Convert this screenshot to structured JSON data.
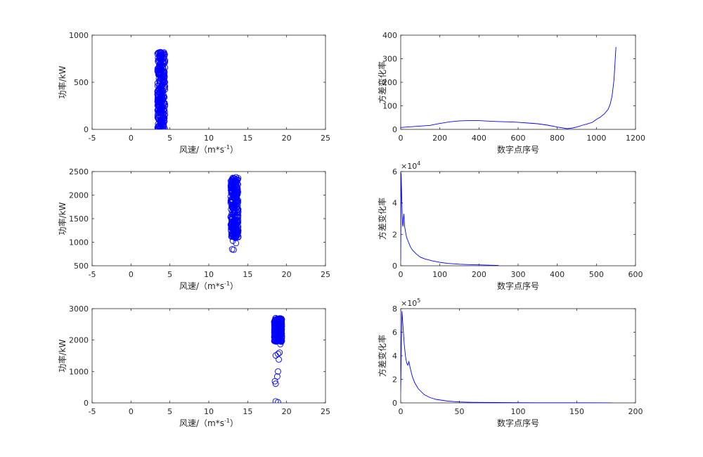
{
  "chart_data": [
    {
      "type": "scatter",
      "xlabel_main": "风速/（m*s",
      "xlabel_sup": "-1",
      "xlabel_close": "）",
      "ylabel": "功率/kW",
      "xlim": [
        -5,
        25
      ],
      "ylim": [
        0,
        1000
      ],
      "xticks": [
        "-5",
        "0",
        "5",
        "10",
        "15",
        "20",
        "25"
      ],
      "yticks": [
        "0",
        "500",
        "1000"
      ],
      "color": "#0000ff",
      "marker": "circle",
      "cluster": {
        "x_min": 3.4,
        "x_max": 4.4,
        "y_min": 0,
        "y_max": 820
      },
      "points": [
        [
          3.8,
          820
        ],
        [
          4.1,
          800
        ],
        [
          4.0,
          780
        ],
        [
          3.9,
          740
        ],
        [
          4.2,
          700
        ],
        [
          3.7,
          690
        ],
        [
          4.1,
          660
        ],
        [
          3.9,
          640
        ],
        [
          4.3,
          610
        ],
        [
          3.6,
          580
        ],
        [
          4.0,
          560
        ],
        [
          3.8,
          540
        ],
        [
          4.2,
          520
        ],
        [
          3.7,
          500
        ],
        [
          4.1,
          480
        ],
        [
          3.9,
          460
        ],
        [
          4.3,
          440
        ],
        [
          3.6,
          420
        ],
        [
          4.0,
          400
        ],
        [
          3.8,
          380
        ],
        [
          4.2,
          360
        ],
        [
          3.7,
          340
        ],
        [
          4.1,
          320
        ],
        [
          3.9,
          300
        ],
        [
          4.3,
          280
        ],
        [
          3.6,
          260
        ],
        [
          4.0,
          240
        ],
        [
          3.8,
          220
        ],
        [
          4.2,
          200
        ],
        [
          3.7,
          180
        ],
        [
          4.1,
          160
        ],
        [
          3.9,
          140
        ],
        [
          4.3,
          120
        ],
        [
          3.6,
          100
        ],
        [
          4.0,
          80
        ],
        [
          3.8,
          60
        ],
        [
          4.2,
          40
        ],
        [
          3.7,
          20
        ],
        [
          4.1,
          10
        ],
        [
          3.9,
          5
        ]
      ]
    },
    {
      "type": "line",
      "xlabel": "数字点序号",
      "ylabel": "方差变化率",
      "exponent": "",
      "xlim": [
        0,
        1200
      ],
      "ylim": [
        0,
        400
      ],
      "xticks": [
        "0",
        "200",
        "400",
        "600",
        "800",
        "1000",
        "1200"
      ],
      "yticks": [
        "0",
        "100",
        "200",
        "300",
        "400"
      ],
      "color": "#0000ff",
      "x": [
        0,
        50,
        100,
        150,
        200,
        250,
        300,
        350,
        400,
        450,
        500,
        550,
        600,
        650,
        700,
        750,
        800,
        850,
        880,
        900,
        930,
        950,
        980,
        1000,
        1020,
        1040,
        1060,
        1070,
        1080,
        1090,
        1095,
        1100
      ],
      "y": [
        8,
        11,
        14,
        17,
        25,
        32,
        36,
        37,
        37,
        35,
        33,
        32,
        30,
        27,
        24,
        18,
        10,
        3,
        6,
        10,
        18,
        22,
        30,
        42,
        52,
        65,
        85,
        105,
        140,
        210,
        280,
        350
      ]
    },
    {
      "type": "scatter",
      "xlabel_main": "风速/（m*s",
      "xlabel_sup": "-1",
      "xlabel_close": "）",
      "ylabel": "功率/kW",
      "xlim": [
        -5,
        25
      ],
      "ylim": [
        500,
        2500
      ],
      "xticks": [
        "-5",
        "0",
        "5",
        "10",
        "15",
        "20",
        "25"
      ],
      "yticks": [
        "500",
        "1000",
        "1500",
        "2000",
        "2500"
      ],
      "color": "#0000ff",
      "marker": "circle",
      "cluster": {
        "x_min": 12.8,
        "x_max": 13.8,
        "y_min": 1100,
        "y_max": 2380
      },
      "points": [
        [
          13.0,
          850
        ],
        [
          13.2,
          840
        ],
        [
          13.5,
          980
        ],
        [
          13.1,
          1030
        ],
        [
          13.4,
          1090
        ],
        [
          13.0,
          1130
        ],
        [
          13.3,
          1180
        ],
        [
          13.6,
          1230
        ],
        [
          13.2,
          1290
        ],
        [
          13.5,
          1340
        ],
        [
          13.0,
          1400
        ],
        [
          13.3,
          1460
        ],
        [
          13.6,
          1520
        ],
        [
          13.1,
          1580
        ],
        [
          13.4,
          1640
        ],
        [
          13.7,
          1700
        ],
        [
          13.0,
          1760
        ],
        [
          13.3,
          1820
        ],
        [
          13.6,
          1880
        ],
        [
          13.2,
          1940
        ],
        [
          13.5,
          2000
        ],
        [
          13.0,
          2060
        ],
        [
          13.3,
          2120
        ],
        [
          13.6,
          2180
        ],
        [
          13.1,
          2240
        ],
        [
          13.4,
          2290
        ],
        [
          13.7,
          2330
        ],
        [
          13.2,
          2360
        ],
        [
          13.5,
          2380
        ]
      ]
    },
    {
      "type": "line",
      "xlabel": "数字点序号",
      "ylabel": "方差变化率",
      "exponent": "4",
      "xlim": [
        0,
        600
      ],
      "ylim": [
        0,
        6
      ],
      "xticks": [
        "0",
        "100",
        "200",
        "300",
        "400",
        "500",
        "600"
      ],
      "yticks": [
        "0",
        "2",
        "4",
        "6"
      ],
      "color": "#0000ff",
      "x": [
        0,
        1,
        2,
        3,
        4,
        5,
        6,
        7,
        8,
        9,
        10,
        12,
        15,
        20,
        25,
        30,
        40,
        50,
        60,
        80,
        100,
        120,
        150,
        180,
        200,
        220,
        250
      ],
      "y": [
        0.3,
        5.9,
        5.0,
        4.0,
        3.2,
        2.6,
        2.5,
        3.0,
        3.3,
        2.9,
        2.5,
        2.2,
        1.8,
        1.5,
        1.2,
        1.0,
        0.75,
        0.55,
        0.45,
        0.32,
        0.22,
        0.15,
        0.1,
        0.07,
        0.06,
        0.04,
        0.02
      ]
    },
    {
      "type": "scatter",
      "xlabel_main": "风速/（m*s",
      "xlabel_sup": "-1",
      "xlabel_close": "）",
      "ylabel": "功率/kW",
      "xlim": [
        -5,
        25
      ],
      "ylim": [
        0,
        3000
      ],
      "xticks": [
        "-5",
        "0",
        "5",
        "10",
        "15",
        "20",
        "25"
      ],
      "yticks": [
        "0",
        "1000",
        "2000",
        "3000"
      ],
      "color": "#0000ff",
      "marker": "circle",
      "cluster": {
        "x_min": 18.4,
        "x_max": 19.4,
        "y_min": 1950,
        "y_max": 2700
      },
      "points": [
        [
          18.6,
          50
        ],
        [
          18.9,
          20
        ],
        [
          18.5,
          690
        ],
        [
          18.6,
          610
        ],
        [
          18.9,
          1000
        ],
        [
          18.8,
          840
        ],
        [
          19.0,
          1380
        ],
        [
          19.1,
          1600
        ],
        [
          18.6,
          1510
        ],
        [
          18.9,
          1560
        ],
        [
          19.2,
          1870
        ],
        [
          18.5,
          2050
        ],
        [
          18.7,
          2600
        ],
        [
          19.0,
          2650
        ],
        [
          18.6,
          2700
        ],
        [
          19.2,
          2580
        ],
        [
          18.8,
          2480
        ],
        [
          19.1,
          2350
        ],
        [
          18.5,
          2200
        ],
        [
          18.9,
          2100
        ]
      ]
    },
    {
      "type": "line",
      "xlabel": "数字点序号",
      "ylabel": "方差变化率",
      "exponent": "5",
      "xlim": [
        0,
        200
      ],
      "ylim": [
        0,
        8
      ],
      "xticks": [
        "0",
        "50",
        "100",
        "150",
        "200"
      ],
      "yticks": [
        "0",
        "2",
        "4",
        "6",
        "8"
      ],
      "color": "#0000ff",
      "x": [
        0,
        1,
        2,
        3,
        4,
        5,
        6,
        7,
        8,
        9,
        10,
        12,
        15,
        20,
        25,
        30,
        40,
        50,
        60,
        80,
        100,
        120,
        150,
        180
      ],
      "y": [
        1.0,
        7.8,
        6.5,
        5.0,
        4.0,
        3.4,
        3.2,
        3.5,
        3.0,
        2.6,
        2.2,
        1.7,
        1.2,
        0.7,
        0.45,
        0.3,
        0.15,
        0.08,
        0.05,
        0.03,
        0.02,
        0.01,
        0.01,
        0.0
      ]
    }
  ]
}
